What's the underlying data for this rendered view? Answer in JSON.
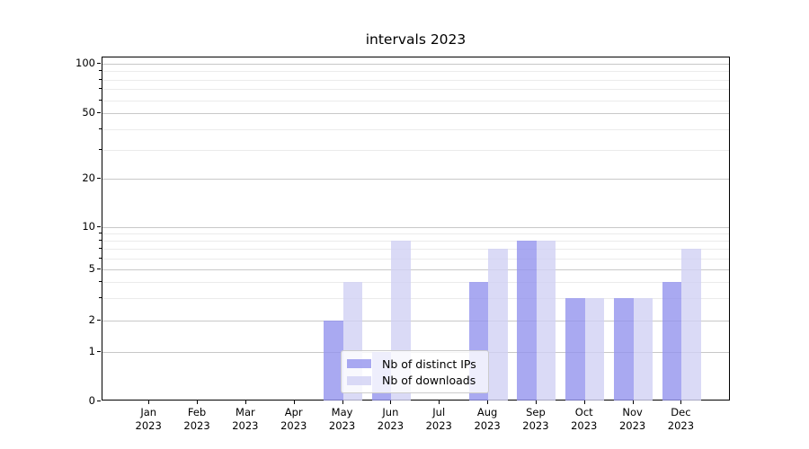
{
  "title": "intervals 2023",
  "chart_data": {
    "type": "bar",
    "title": "intervals 2023",
    "categories": [
      "Jan 2023",
      "Feb 2023",
      "Mar 2023",
      "Apr 2023",
      "May 2023",
      "Jun 2023",
      "Jul 2023",
      "Aug 2023",
      "Sep 2023",
      "Oct 2023",
      "Nov 2023",
      "Dec 2023"
    ],
    "series": [
      {
        "name": "Nb of distinct IPs",
        "color": "rgba(147,147,238,0.8)",
        "values": [
          0,
          0,
          0,
          0,
          2,
          1,
          0,
          4,
          8,
          3,
          3,
          4
        ]
      },
      {
        "name": "Nb of downloads",
        "color": "rgba(209,209,244,0.8)",
        "values": [
          0,
          0,
          0,
          0,
          4,
          8,
          0,
          7,
          8,
          3,
          3,
          7
        ]
      }
    ],
    "xlabel": "",
    "ylabel": "",
    "yscale": "symlog-like",
    "ylim": [
      0,
      110
    ],
    "yticks": [
      0,
      1,
      2,
      5,
      10,
      20,
      50,
      100
    ],
    "minor_yticks": [
      3,
      4,
      6,
      7,
      8,
      9,
      30,
      40,
      60,
      70,
      80,
      90
    ],
    "grid": "horizontal major+minor",
    "legend_position": "lower center"
  },
  "legend": {
    "items": [
      {
        "label": "Nb of distinct IPs"
      },
      {
        "label": "Nb of downloads"
      }
    ]
  },
  "colors": {
    "background": "#ffffff",
    "spine": "#000000",
    "major_grid": "#c8c8c8",
    "minor_grid": "#ebebeb",
    "series_dark": "#a9a9f0",
    "series_light": "#dadaf6"
  }
}
